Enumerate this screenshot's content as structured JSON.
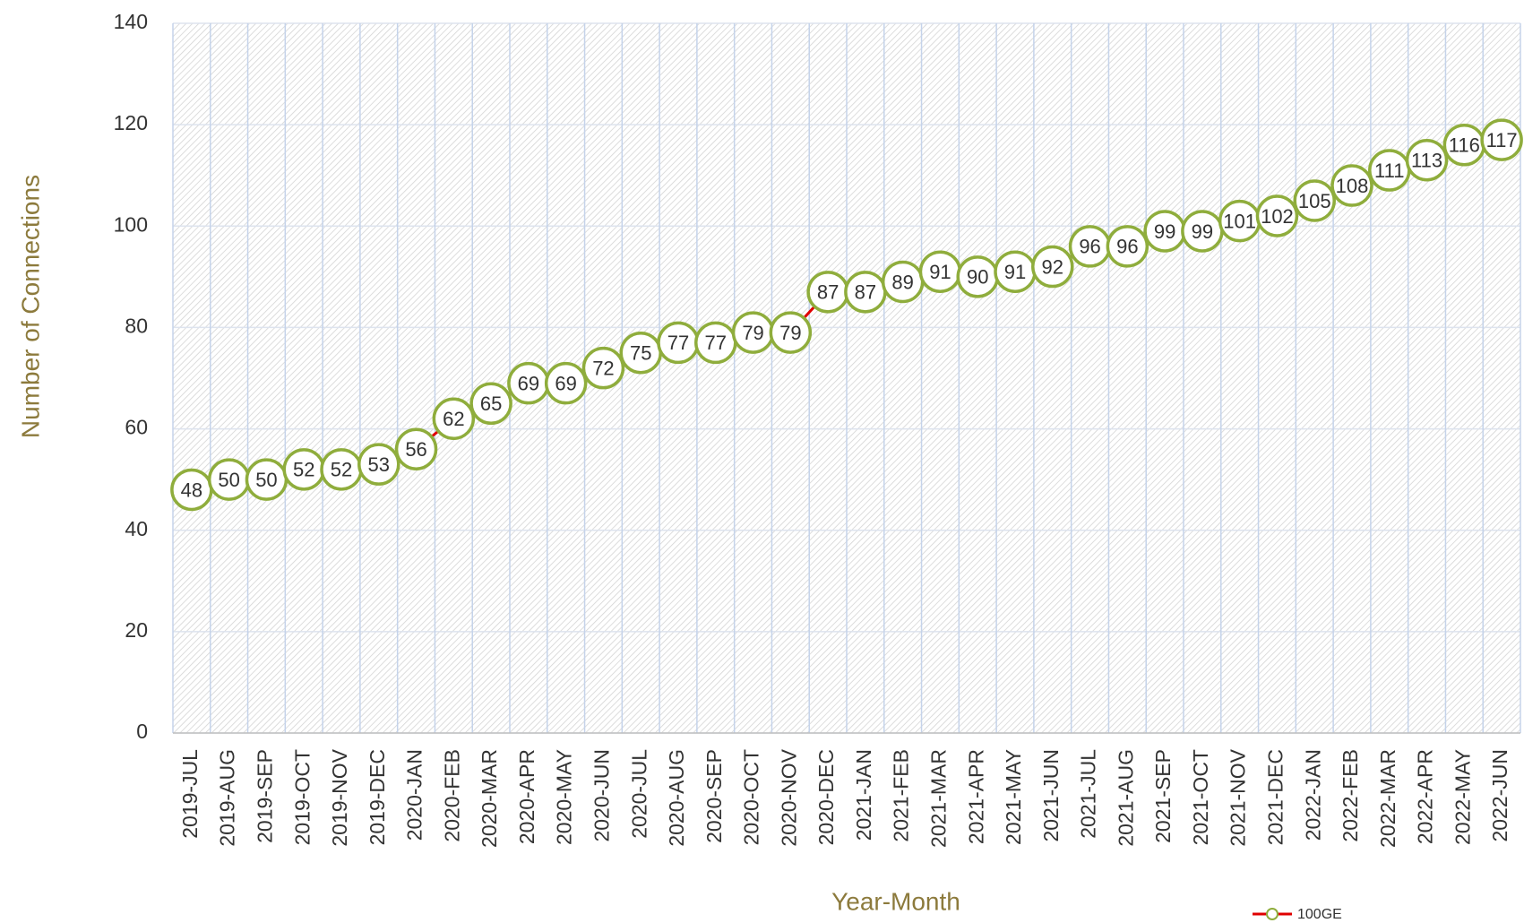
{
  "chart_data": {
    "type": "line",
    "x_label": "Year-Month",
    "y_label": "Number of Connections",
    "categories": [
      "2019-JUL",
      "2019-AUG",
      "2019-SEP",
      "2019-OCT",
      "2019-NOV",
      "2019-DEC",
      "2020-JAN",
      "2020-FEB",
      "2020-MAR",
      "2020-APR",
      "2020-MAY",
      "2020-JUN",
      "2020-JUL",
      "2020-AUG",
      "2020-SEP",
      "2020-OCT",
      "2020-NOV",
      "2020-DEC",
      "2021-JAN",
      "2021-FEB",
      "2021-MAR",
      "2021-APR",
      "2021-MAY",
      "2021-JUN",
      "2021-JUL",
      "2021-AUG",
      "2021-SEP",
      "2021-OCT",
      "2021-NOV",
      "2021-DEC",
      "2022-JAN",
      "2022-FEB",
      "2022-MAR",
      "2022-APR",
      "2022-MAY",
      "2022-JUN"
    ],
    "series": [
      {
        "name": "100GE",
        "color": "#e00000",
        "marker_color": "#8fad3c",
        "values": [
          48,
          50,
          50,
          52,
          52,
          53,
          56,
          62,
          65,
          69,
          69,
          72,
          75,
          77,
          77,
          79,
          79,
          87,
          87,
          89,
          91,
          90,
          91,
          92,
          96,
          96,
          99,
          99,
          101,
          102,
          105,
          108,
          111,
          113,
          116,
          117
        ]
      }
    ],
    "ylim": [
      0,
      140
    ],
    "yticks": [
      0,
      20,
      40,
      60,
      80,
      100,
      120,
      140
    ],
    "grid": true,
    "legend": "bottom-right"
  }
}
